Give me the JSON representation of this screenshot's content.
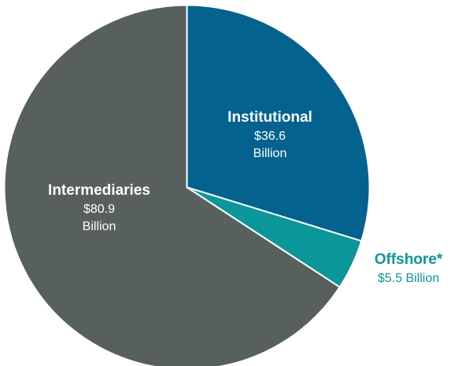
{
  "chart_data": {
    "type": "pie",
    "title": "",
    "unit": "Billion",
    "slices": [
      {
        "name": "Institutional",
        "value": 36.6,
        "value_label": "$36.6",
        "unit_label": "Billion",
        "color": "#04628f",
        "label_color": "#ffffff"
      },
      {
        "name": "Offshore*",
        "value": 5.5,
        "value_label": "$5.5 Billion",
        "unit_label": "",
        "color": "#0b9699",
        "label_color": "#0b9699"
      },
      {
        "name": "Intermediaries",
        "value": 80.9,
        "value_label": "$80.9",
        "unit_label": "Billion",
        "color": "#58605d",
        "label_color": "#ffffff"
      }
    ],
    "start_angle": "12 o'clock",
    "direction": "clockwise",
    "legend": "none"
  }
}
